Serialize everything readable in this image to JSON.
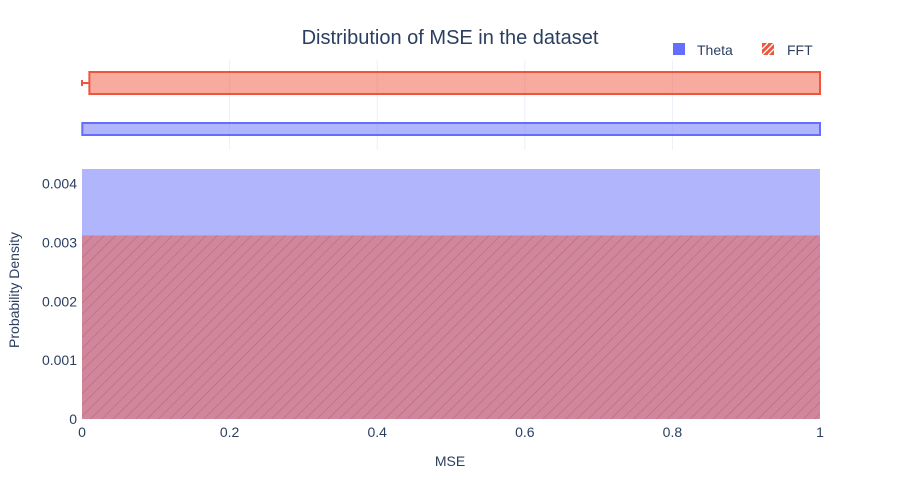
{
  "chart_data": {
    "type": "histogram",
    "title": "Distribution of MSE in the dataset",
    "xlabel": "MSE",
    "ylabel": "Probability Density",
    "xlim": [
      0,
      1
    ],
    "ylim": [
      0,
      0.00425
    ],
    "x_ticks": [
      "0",
      "0.2",
      "0.4",
      "0.6",
      "0.8",
      "1"
    ],
    "y_ticks": [
      "0",
      "0.001",
      "0.002",
      "0.003",
      "0.004"
    ],
    "x_tick_values": [
      0,
      0.2,
      0.4,
      0.6,
      0.8,
      1
    ],
    "y_tick_values": [
      0,
      0.001,
      0.002,
      0.003,
      0.004
    ],
    "legend_position": "top-right",
    "grid": true,
    "series": [
      {
        "name": "Theta",
        "color": "#636efa",
        "pattern": "none",
        "bins": [
          {
            "x0": 0,
            "x1": 1,
            "density": 0.00425
          }
        ],
        "marginal_box": {
          "whisker_start": 0,
          "box_start": 0.0004,
          "box_end": 1
        }
      },
      {
        "name": "FFT",
        "color": "#ef553b",
        "pattern": "diagonal-hatch",
        "bins": [
          {
            "x0": 0,
            "x1": 1,
            "density": 0.00312
          }
        ],
        "marginal_box": {
          "whisker_start": 0,
          "box_start": 0.01,
          "box_end": 1
        }
      }
    ]
  }
}
